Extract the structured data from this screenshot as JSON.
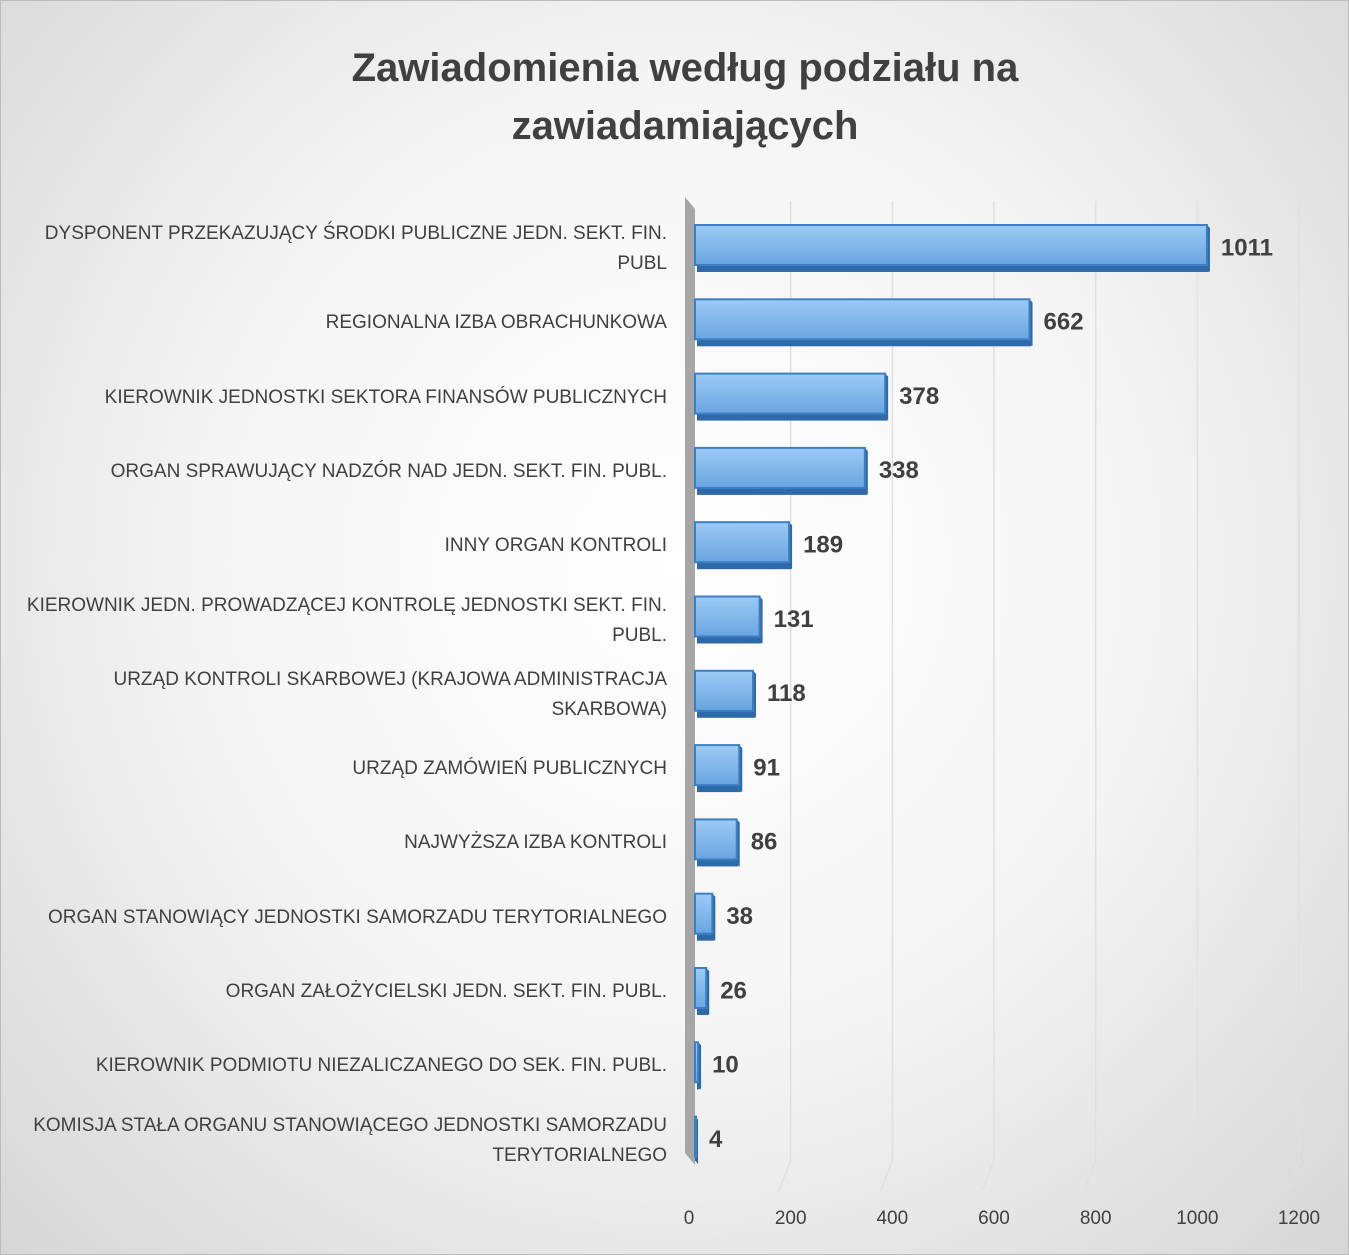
{
  "chart_data": {
    "type": "bar",
    "orientation": "horizontal",
    "title": "Zawiadomienia według podziału na zawiadamiających",
    "categories": [
      "DYSPONENT PRZEKAZUJĄCY ŚRODKI PUBLICZNE JEDN. SEKT. FIN. PUBL",
      "REGIONALNA IZBA OBRACHUNKOWA",
      "KIEROWNIK JEDNOSTKI SEKTORA FINANSÓW PUBLICZNYCH",
      "ORGAN SPRAWUJĄCY NADZÓR NAD JEDN. SEKT. FIN. PUBL.",
      "INNY ORGAN KONTROLI",
      "KIEROWNIK JEDN. PROWADZĄCEJ KONTROLĘ JEDNOSTKI SEKT. FIN. PUBL.",
      "URZĄD KONTROLI SKARBOWEJ (KRAJOWA ADMINISTRACJA SKARBOWA)",
      "URZĄD ZAMÓWIEŃ PUBLICZNYCH",
      "NAJWYŻSZA IZBA KONTROLI",
      "ORGAN STANOWIĄCY JEDNOSTKI SAMORZADU TERYTORIALNEGO",
      "ORGAN ZAŁOŻYCIELSKI JEDN. SEKT. FIN. PUBL.",
      "KIEROWNIK PODMIOTU NIEZALICZANEGO DO SEK. FIN. PUBL.",
      "KOMISJA STAŁA ORGANU STANOWIĄCEGO JEDNOSTKI SAMORZADU TERYTORIALNEGO"
    ],
    "values": [
      1011,
      662,
      378,
      338,
      189,
      131,
      118,
      91,
      86,
      38,
      26,
      10,
      4
    ],
    "color": "#5b9bd5",
    "xlim": [
      0,
      1200
    ],
    "xticks": [
      0,
      200,
      400,
      600,
      800,
      1000,
      1200
    ],
    "grid": true
  }
}
